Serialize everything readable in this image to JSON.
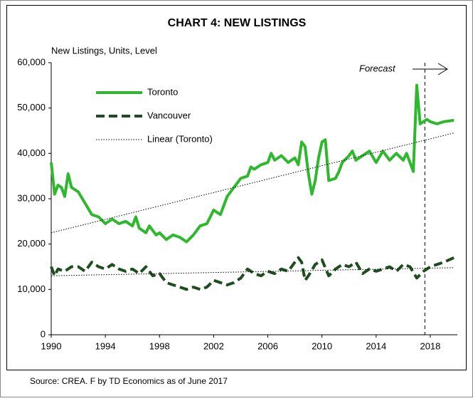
{
  "chart_data": {
    "type": "line",
    "title": "CHART 4: NEW LISTINGS",
    "y_label": "New Listings, Units, Level",
    "source": "Source: CREA. F by TD Economics as of June 2017",
    "annotation": "Forecast",
    "forecast_x": 2017.6,
    "xlim": [
      1990,
      2020
    ],
    "xticks": [
      1990,
      1994,
      1998,
      2002,
      2006,
      2010,
      2014,
      2018
    ],
    "ylim": [
      0,
      60000
    ],
    "yticks": [
      0,
      {
        "value": 10000,
        "label": "10,000"
      },
      {
        "value": 20000,
        "label": "20,000"
      },
      {
        "value": 30000,
        "label": "30,000"
      },
      {
        "value": 40000,
        "label": "40,000"
      },
      {
        "value": 50000,
        "label": "50,000"
      },
      {
        "value": 60000,
        "label": "60,000"
      }
    ],
    "series": [
      {
        "name": "Toronto",
        "color": "#2db82d",
        "style": "solid",
        "x": [
          1990,
          1990.25,
          1990.5,
          1990.75,
          1991,
          1991.25,
          1991.5,
          1992,
          1992.5,
          1993,
          1993.5,
          1994,
          1994.5,
          1995,
          1995.5,
          1996,
          1996.25,
          1996.5,
          1997,
          1997.25,
          1997.75,
          1998,
          1998.5,
          1999,
          1999.5,
          2000,
          2000.5,
          2001,
          2001.5,
          2002,
          2002.5,
          2003,
          2003.5,
          2004,
          2004.5,
          2004.75,
          2005,
          2005.5,
          2006,
          2006.25,
          2006.5,
          2007,
          2007.5,
          2008,
          2008.25,
          2008.5,
          2008.75,
          2009,
          2009.25,
          2009.5,
          2009.75,
          2010,
          2010.25,
          2010.5,
          2011,
          2011.25,
          2011.5,
          2012,
          2012.25,
          2012.5,
          2013,
          2013.5,
          2014,
          2014.5,
          2015,
          2015.5,
          2016,
          2016.25,
          2016.75,
          2017,
          2017.25,
          2017.75,
          2018,
          2018.5,
          2019,
          2019.75
        ],
        "values": [
          38000,
          31000,
          33000,
          32500,
          30500,
          35500,
          32500,
          31500,
          29000,
          26500,
          26000,
          24500,
          25500,
          24500,
          25000,
          24000,
          26000,
          23500,
          22500,
          24000,
          22000,
          22500,
          21000,
          22000,
          21500,
          20500,
          22000,
          24000,
          24500,
          27500,
          26500,
          30500,
          32500,
          34500,
          35000,
          37000,
          36500,
          37500,
          38000,
          40000,
          38500,
          39500,
          38000,
          39000,
          37500,
          42500,
          41500,
          35500,
          31000,
          34000,
          39000,
          42500,
          43000,
          34000,
          34500,
          36000,
          38000,
          39500,
          40500,
          38500,
          39500,
          40500,
          38000,
          40500,
          38500,
          40000,
          38500,
          40000,
          36000,
          55000,
          46500,
          47500,
          47000,
          46500,
          47000,
          47300
        ]
      },
      {
        "name": "Vancouver",
        "color": "#1e4d1e",
        "style": "dashed",
        "x": [
          1990,
          1990.25,
          1990.5,
          1991,
          1991.5,
          1992,
          1992.5,
          1993,
          1993.5,
          1994,
          1994.5,
          1995,
          1995.5,
          1996,
          1996.5,
          1997,
          1997.5,
          1998,
          1998.5,
          1999,
          1999.5,
          2000,
          2000.5,
          2001,
          2001.5,
          2002,
          2002.5,
          2003,
          2003.5,
          2004,
          2004.5,
          2005,
          2005.5,
          2006,
          2006.5,
          2007,
          2007.5,
          2008,
          2008.25,
          2008.5,
          2008.75,
          2009,
          2009.5,
          2010,
          2010.5,
          2011,
          2011.5,
          2012,
          2012.5,
          2013,
          2013.5,
          2014,
          2014.5,
          2015,
          2015.5,
          2016,
          2016.5,
          2017,
          2017.5,
          2018,
          2018.5,
          2019,
          2019.75
        ],
        "values": [
          15000,
          13000,
          14500,
          14000,
          15000,
          15000,
          14000,
          16000,
          15000,
          14500,
          15500,
          14500,
          14000,
          14500,
          13500,
          15000,
          13000,
          13500,
          11500,
          11000,
          10500,
          10000,
          10500,
          10000,
          10500,
          12000,
          11500,
          11000,
          11500,
          12500,
          14500,
          13500,
          13000,
          14000,
          13500,
          14500,
          14000,
          16000,
          17000,
          16000,
          12000,
          13000,
          15500,
          16500,
          13000,
          14500,
          15500,
          15000,
          16000,
          13500,
          14500,
          14000,
          14500,
          15000,
          14000,
          15500,
          15000,
          12500,
          14000,
          15000,
          15500,
          16000,
          17000
        ]
      },
      {
        "name": "Linear (Toronto)",
        "color": "#000000",
        "style": "dotted",
        "x": [
          1990,
          2019.75
        ],
        "values": [
          22500,
          44500
        ]
      },
      {
        "color": "#000000",
        "style": "dotted",
        "x": [
          1990,
          2019.75
        ],
        "values": [
          13000,
          14800
        ]
      }
    ]
  }
}
